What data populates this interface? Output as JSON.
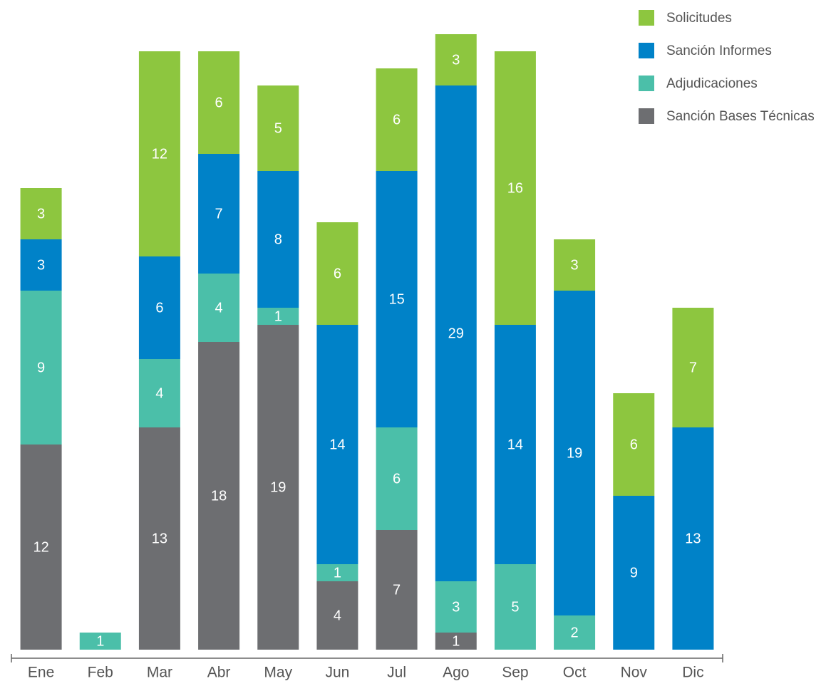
{
  "chart_data": {
    "type": "stacked_bar",
    "categories": [
      "Ene",
      "Feb",
      "Mar",
      "Abr",
      "May",
      "Jun",
      "Jul",
      "Ago",
      "Sep",
      "Oct",
      "Nov",
      "Dic"
    ],
    "series": [
      {
        "name": "Sanción Bases Técnicas",
        "color": "#6d6e71",
        "values": [
          12,
          null,
          13,
          18,
          19,
          4,
          7,
          1,
          null,
          null,
          null,
          null
        ]
      },
      {
        "name": "Adjudicaciones",
        "color": "#4bbfa9",
        "values": [
          9,
          1,
          4,
          4,
          1,
          1,
          6,
          3,
          5,
          2,
          null,
          null
        ]
      },
      {
        "name": "Sanción Informes",
        "color": "#0082c8",
        "values": [
          3,
          null,
          6,
          7,
          8,
          14,
          15,
          29,
          14,
          19,
          9,
          13
        ]
      },
      {
        "name": "Solicitudes",
        "color": "#8dc63f",
        "values": [
          3,
          null,
          12,
          6,
          5,
          6,
          6,
          3,
          16,
          3,
          6,
          7
        ]
      }
    ],
    "ylim": [
      0,
      36.5
    ]
  }
}
